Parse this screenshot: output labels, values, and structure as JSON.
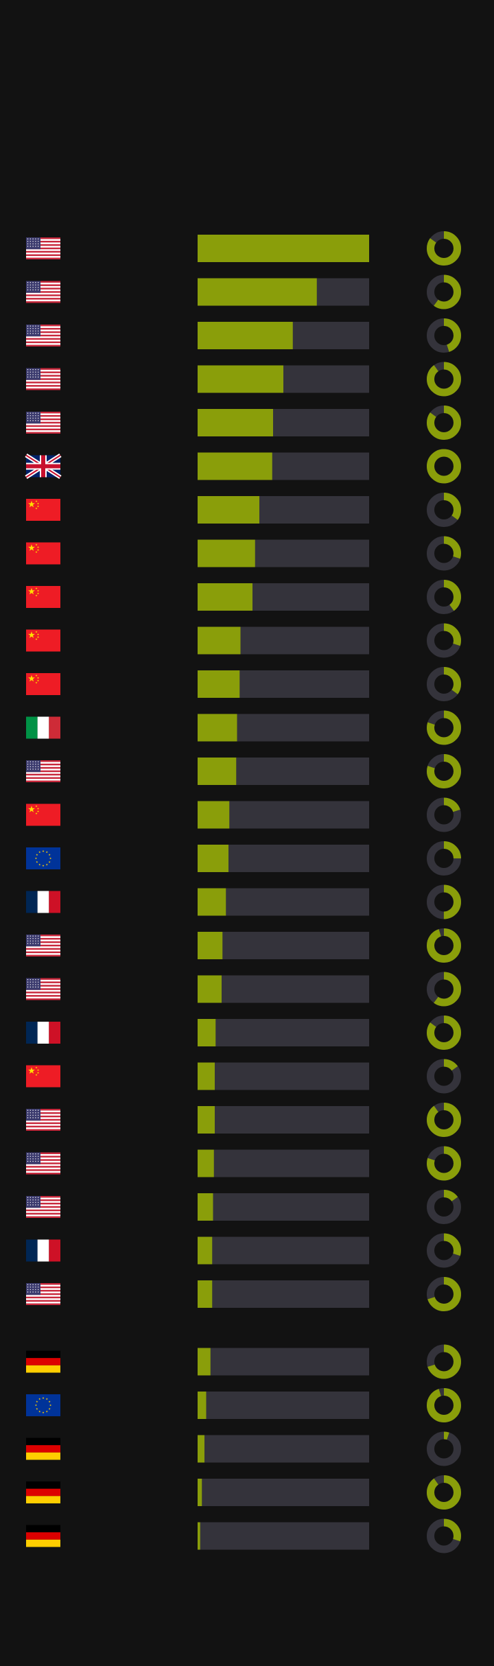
{
  "theme": {
    "background": "#121212",
    "accent": "#8a9e0a",
    "track": "#34333b",
    "donut_hole": "#121212"
  },
  "chart_data": {
    "type": "bar",
    "description_note": "",
    "x_range": [
      0,
      1
    ],
    "group_break_after_row": 25,
    "rows": [
      {
        "flag": "flag-us",
        "bar": 1.0,
        "ring": 0.85
      },
      {
        "flag": "flag-us",
        "bar": 0.695,
        "ring": 0.6
      },
      {
        "flag": "flag-us",
        "bar": 0.555,
        "ring": 0.45
      },
      {
        "flag": "flag-us",
        "bar": 0.5,
        "ring": 0.9
      },
      {
        "flag": "flag-us",
        "bar": 0.44,
        "ring": 0.85
      },
      {
        "flag": "flag-uk",
        "bar": 0.435,
        "ring": 1.0
      },
      {
        "flag": "flag-cn",
        "bar": 0.36,
        "ring": 0.35
      },
      {
        "flag": "flag-cn",
        "bar": 0.335,
        "ring": 0.3
      },
      {
        "flag": "flag-cn",
        "bar": 0.32,
        "ring": 0.4
      },
      {
        "flag": "flag-cn",
        "bar": 0.25,
        "ring": 0.3
      },
      {
        "flag": "flag-cn",
        "bar": 0.245,
        "ring": 0.35
      },
      {
        "flag": "flag-it",
        "bar": 0.23,
        "ring": 0.8
      },
      {
        "flag": "flag-us",
        "bar": 0.225,
        "ring": 0.8
      },
      {
        "flag": "flag-cn",
        "bar": 0.185,
        "ring": 0.2
      },
      {
        "flag": "flag-eu",
        "bar": 0.18,
        "ring": 0.25
      },
      {
        "flag": "flag-fr",
        "bar": 0.165,
        "ring": 0.5
      },
      {
        "flag": "flag-us",
        "bar": 0.145,
        "ring": 0.95
      },
      {
        "flag": "flag-us",
        "bar": 0.14,
        "ring": 0.6
      },
      {
        "flag": "flag-fr",
        "bar": 0.105,
        "ring": 0.85
      },
      {
        "flag": "flag-cn",
        "bar": 0.1,
        "ring": 0.15
      },
      {
        "flag": "flag-us",
        "bar": 0.1,
        "ring": 0.9
      },
      {
        "flag": "flag-us",
        "bar": 0.095,
        "ring": 0.8
      },
      {
        "flag": "flag-us",
        "bar": 0.09,
        "ring": 0.15
      },
      {
        "flag": "flag-fr",
        "bar": 0.085,
        "ring": 0.3
      },
      {
        "flag": "flag-us",
        "bar": 0.085,
        "ring": 0.7
      },
      {
        "flag": "flag-de",
        "bar": 0.075,
        "ring": 0.7
      },
      {
        "flag": "flag-eu",
        "bar": 0.05,
        "ring": 0.95
      },
      {
        "flag": "flag-de",
        "bar": 0.04,
        "ring": 0.05
      },
      {
        "flag": "flag-de",
        "bar": 0.025,
        "ring": 0.9
      },
      {
        "flag": "flag-de",
        "bar": 0.015,
        "ring": 0.3
      }
    ]
  }
}
